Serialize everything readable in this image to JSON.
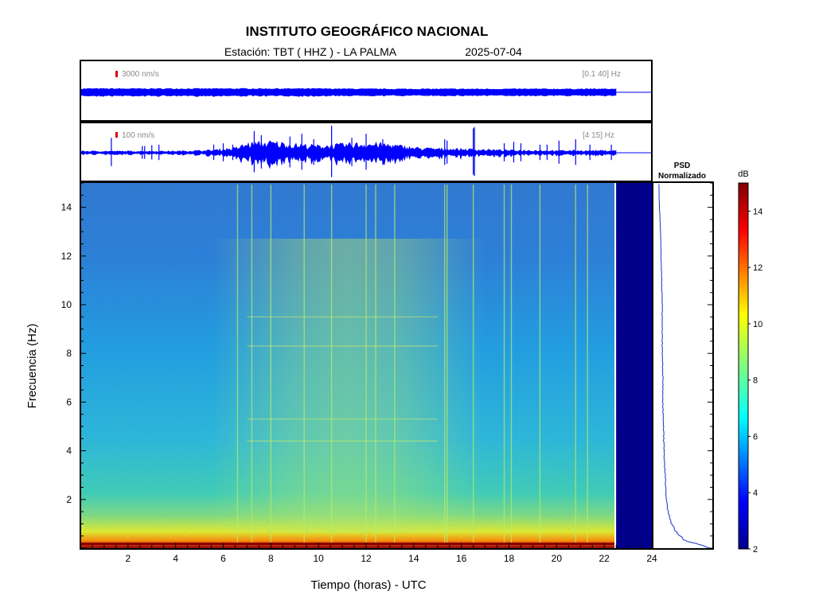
{
  "chart_data": [
    {
      "type": "line",
      "name": "seismogram-broadband",
      "amplitude_scale_label": "3000 nm/s",
      "band_label": "[0.1 40] Hz",
      "x_range": [
        0,
        24
      ],
      "data_end_hour": 22.5,
      "envelope_x_hours": [
        0,
        2,
        4,
        6,
        8,
        10,
        12,
        14,
        16,
        18,
        20,
        22.5
      ],
      "envelope_amplitude_relative": [
        0.12,
        0.12,
        0.12,
        0.12,
        0.12,
        0.12,
        0.11,
        0.11,
        0.11,
        0.11,
        0.11,
        0.11
      ]
    },
    {
      "type": "line",
      "name": "seismogram-filtered",
      "amplitude_scale_label": "100 nm/s",
      "band_label": "[4 15] Hz",
      "x_range": [
        0,
        24
      ],
      "data_end_hour": 22.5,
      "background_envelope_hours": [
        0,
        2,
        4,
        5.5,
        6.5,
        7,
        8,
        9,
        10,
        11,
        12,
        13,
        14,
        15,
        16,
        17,
        18,
        19,
        20,
        21,
        22.5
      ],
      "background_envelope_relative": [
        0.05,
        0.05,
        0.05,
        0.08,
        0.15,
        0.28,
        0.34,
        0.26,
        0.22,
        0.26,
        0.3,
        0.26,
        0.16,
        0.13,
        0.12,
        0.1,
        0.08,
        0.08,
        0.07,
        0.07,
        0.07
      ],
      "spike_hours": [
        1.3,
        2.6,
        2.7,
        3.0,
        3.3,
        5.6,
        6.0,
        6.4,
        7.3,
        7.6,
        8.8,
        9.3,
        9.8,
        10.55,
        11.4,
        12.0,
        12.7,
        15.3,
        15.4,
        16.5,
        16.55,
        17.8,
        18.2,
        18.5,
        19.3,
        19.6,
        20.1,
        20.8,
        21.4,
        22.3
      ],
      "spike_amplitude_relative": [
        0.55,
        0.25,
        0.25,
        0.28,
        0.3,
        0.3,
        0.35,
        0.3,
        0.8,
        0.65,
        0.6,
        0.7,
        0.5,
        1.0,
        0.55,
        0.7,
        0.5,
        0.5,
        0.45,
        0.9,
        0.95,
        0.35,
        0.4,
        0.35,
        0.3,
        0.3,
        0.45,
        0.5,
        0.3,
        0.3
      ]
    },
    {
      "type": "heatmap",
      "name": "spectrogram",
      "xlabel": "Tiempo (horas) - UTC",
      "ylabel": "Frecuencia  (Hz)",
      "xlim": [
        0,
        24
      ],
      "ylim": [
        0,
        15
      ],
      "x_ticks": [
        2,
        4,
        6,
        8,
        10,
        12,
        14,
        16,
        18,
        20,
        22,
        24
      ],
      "y_ticks": [
        2,
        4,
        6,
        8,
        10,
        12,
        14
      ],
      "no_data_from_hour": 22.5,
      "low_frequency_band_hz": [
        0,
        1.5
      ],
      "vertical_event_lines_hours": [
        6.6,
        7.2,
        8.0,
        9.4,
        10.55,
        12.0,
        12.4,
        13.2,
        15.3,
        15.4,
        16.5,
        17.8,
        18.1,
        19.3,
        20.8,
        21.3
      ],
      "horizontal_tones_hz": [
        4.4,
        5.3,
        9.5,
        8.3
      ],
      "colorbar": {
        "label": "dB",
        "range": [
          2,
          15
        ],
        "ticks": [
          2,
          4,
          6,
          8,
          10,
          12,
          14
        ]
      }
    },
    {
      "type": "line",
      "name": "psd-normalizado",
      "title_line1": "PSD",
      "title_line2": "Normalizado",
      "freq_hz": [
        0,
        0.3,
        0.6,
        1.0,
        1.5,
        2.0,
        3.0,
        4.0,
        5.0,
        6.0,
        7.0,
        8.0,
        9.0,
        10.0,
        11.0,
        12.0,
        13.0,
        14.0,
        15.0
      ],
      "value_relative": [
        1.0,
        0.55,
        0.4,
        0.3,
        0.24,
        0.21,
        0.19,
        0.17,
        0.16,
        0.15,
        0.15,
        0.14,
        0.14,
        0.14,
        0.13,
        0.12,
        0.11,
        0.09,
        0.08
      ]
    }
  ],
  "header": {
    "title": "INSTITUTO GEOGRÁFICO NACIONAL",
    "station": "Estación:  TBT ( HHZ ) - LA PALMA",
    "date": "2025-07-04"
  },
  "colors": {
    "trace": "#0000ff",
    "scale_marker": "#dd0000",
    "no_data": "#00008b",
    "psd_line": "#1a33cc"
  }
}
